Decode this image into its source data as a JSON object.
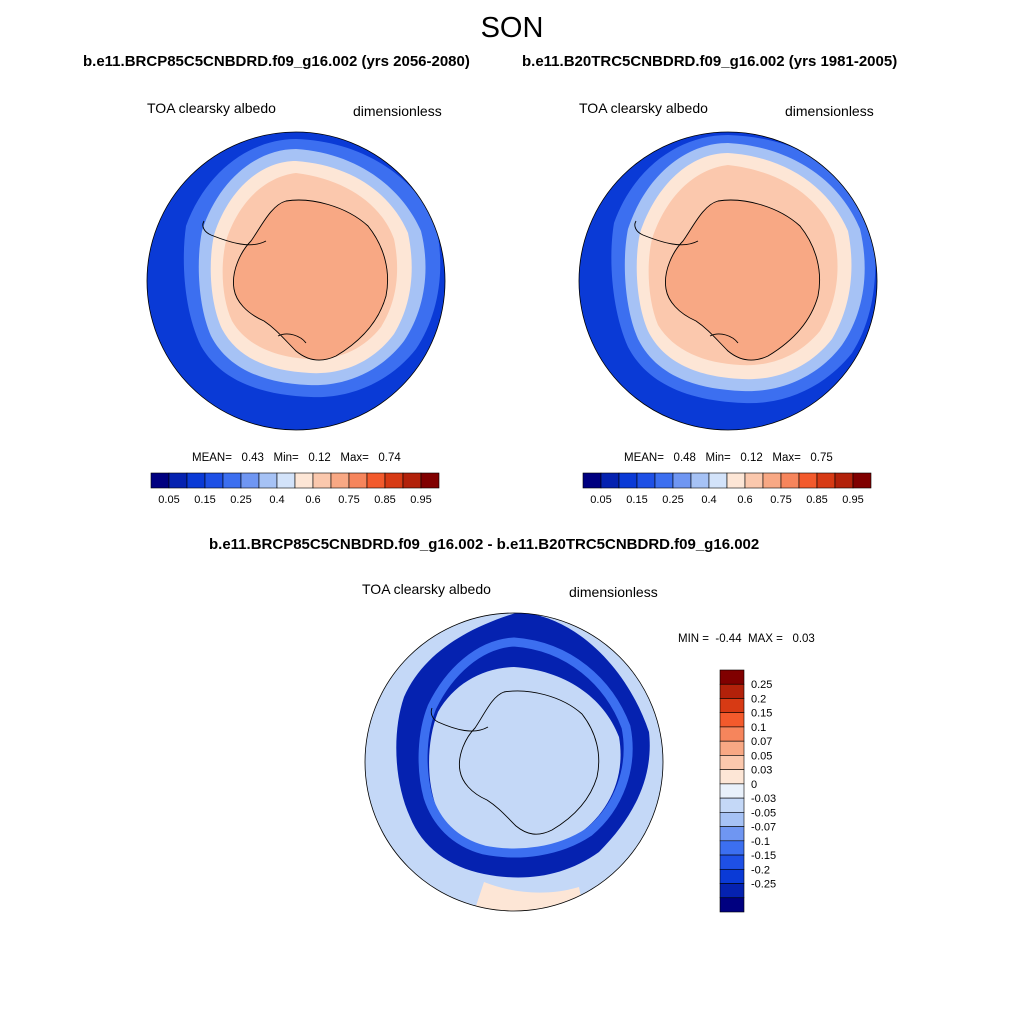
{
  "season": "SON",
  "panels": [
    {
      "case": "b.e11.BRCP85C5CNBDRD.f09_g16.002 (yrs 2056-2080)",
      "variable": "TOA clearsky albedo",
      "units": "dimensionless",
      "stats": {
        "mean_label": "MEAN=",
        "mean": "0.43",
        "min_label": "Min=",
        "min": "0.12",
        "max_label": "Max=",
        "max": "0.74"
      }
    },
    {
      "case": "b.e11.B20TRC5CNBDRD.f09_g16.002 (yrs 1981-2005)",
      "variable": "TOA clearsky albedo",
      "units": "dimensionless",
      "stats": {
        "mean_label": "MEAN=",
        "mean": "0.48",
        "min_label": "Min=",
        "min": "0.12",
        "max_label": "Max=",
        "max": "0.75"
      }
    }
  ],
  "difference": {
    "title": "b.e11.BRCP85C5CNBDRD.f09_g16.002 - b.e11.B20TRC5CNBDRD.f09_g16.002",
    "variable": "TOA clearsky albedo",
    "units": "dimensionless",
    "range": {
      "min_label": "MIN =",
      "min": "-0.44",
      "max_label": "MAX =",
      "max": "0.03"
    }
  },
  "colorbars": {
    "abs_colors": [
      "#000080",
      "#0522b0",
      "#0a3ad6",
      "#1e50e6",
      "#3c6ff0",
      "#6f96f2",
      "#a6c2f5",
      "#d3e3fa",
      "#fde6d6",
      "#fbc8ad",
      "#f8a884",
      "#f6855c",
      "#f35a2c",
      "#d73a14",
      "#b2210a",
      "#800000"
    ],
    "abs_ticks": [
      "0.05",
      "0.15",
      "0.25",
      "0.4",
      "0.6",
      "0.75",
      "0.85",
      "0.95"
    ],
    "diff_colors": [
      "#800000",
      "#b2210a",
      "#d73a14",
      "#f35a2c",
      "#f6855c",
      "#f8a884",
      "#fbc8ad",
      "#fde6d6",
      "#e9f1fb",
      "#c4d8f7",
      "#a6c2f5",
      "#6f96f2",
      "#3c6ff0",
      "#1e50e6",
      "#0a3ad6",
      "#0522b0",
      "#000080"
    ],
    "diff_ticks": [
      "0.25",
      "0.2",
      "0.15",
      "0.1",
      "0.07",
      "0.05",
      "0.03",
      "0",
      "-0.03",
      "-0.05",
      "-0.07",
      "-0.1",
      "-0.15",
      "-0.2",
      "-0.25"
    ]
  }
}
